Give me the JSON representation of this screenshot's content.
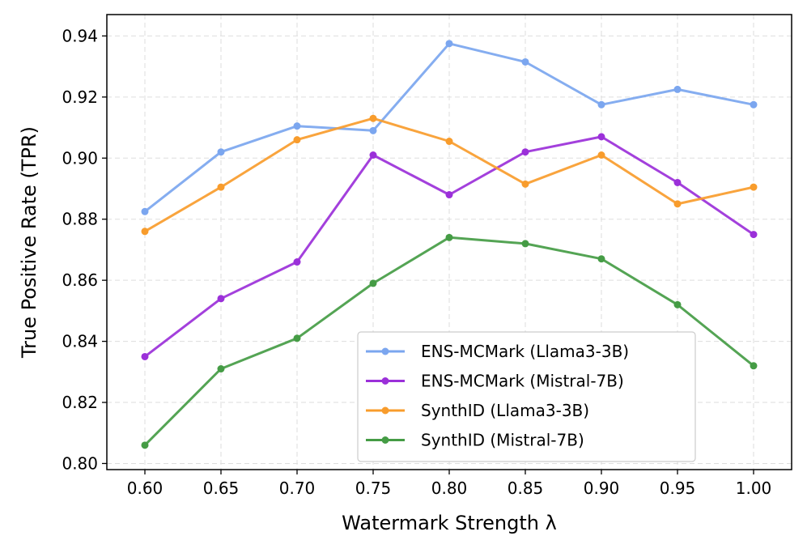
{
  "chart_data": {
    "type": "line",
    "title": "",
    "xlabel": "Watermark Strength λ",
    "ylabel": "True Positive Rate (TPR)",
    "x": [
      0.6,
      0.65,
      0.7,
      0.75,
      0.8,
      0.85,
      0.9,
      0.95,
      1.0
    ],
    "x_tick_labels": [
      "0.60",
      "0.65",
      "0.70",
      "0.75",
      "0.80",
      "0.85",
      "0.90",
      "0.95",
      "1.00"
    ],
    "y_ticks": [
      0.8,
      0.82,
      0.84,
      0.86,
      0.88,
      0.9,
      0.92,
      0.94
    ],
    "y_tick_labels": [
      "0.80",
      "0.82",
      "0.84",
      "0.86",
      "0.88",
      "0.90",
      "0.92",
      "0.94"
    ],
    "xlim": [
      0.575,
      1.025
    ],
    "ylim": [
      0.798,
      0.947
    ],
    "grid": true,
    "legend_position": "lower-right",
    "series": [
      {
        "name": "ENS-MCMark (Llama3-3B)",
        "color": "#7ba6ef",
        "values": [
          0.8825,
          0.902,
          0.9105,
          0.909,
          0.9375,
          0.9315,
          0.9175,
          0.9225,
          0.9175
        ]
      },
      {
        "name": "ENS-MCMark (Mistral-7B)",
        "color": "#9b30d9",
        "values": [
          0.835,
          0.854,
          0.866,
          0.901,
          0.888,
          0.902,
          0.907,
          0.892,
          0.875
        ]
      },
      {
        "name": "SynthID (Llama3-3B)",
        "color": "#f89c2c",
        "values": [
          0.876,
          0.8905,
          0.906,
          0.913,
          0.9055,
          0.8915,
          0.901,
          0.885,
          0.8905
        ]
      },
      {
        "name": "SynthID (Mistral-7B)",
        "color": "#459c45",
        "values": [
          0.806,
          0.831,
          0.841,
          0.859,
          0.874,
          0.872,
          0.867,
          0.852,
          0.832
        ]
      }
    ]
  }
}
